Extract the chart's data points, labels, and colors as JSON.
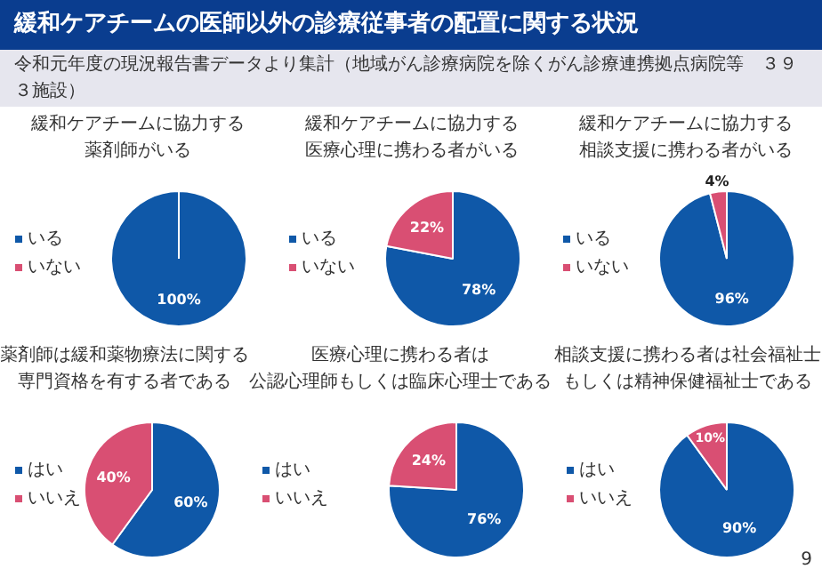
{
  "chart_data": [
    {
      "type": "other",
      "title": "緩和ケアチームの医師以外の診療従事者の配置に関する状況",
      "subtitle": "令和元年度の現況報告書データより集計（地域がん診療病院を除くがん診療連携拠点病院等　３９３施設）"
    },
    {
      "type": "pie",
      "title": "緩和ケアチームに協力する",
      "subtitle": "薬剤師がいる",
      "categories": [
        "いる",
        "いない"
      ],
      "values": [
        100,
        0
      ],
      "colors": [
        "#0f58a8",
        "#d94f73"
      ],
      "value_labels": [
        "100%",
        null
      ],
      "legend": "left"
    },
    {
      "type": "pie",
      "title": "緩和ケアチームに協力する",
      "subtitle": "医療心理に携わる者がいる",
      "categories": [
        "いる",
        "いない"
      ],
      "values": [
        78,
        22
      ],
      "colors": [
        "#0f58a8",
        "#d94f73"
      ],
      "value_labels": [
        "78%",
        "22%"
      ],
      "legend": "left"
    },
    {
      "type": "pie",
      "title": "緩和ケアチームに協力する",
      "subtitle": "相談支援に携わる者がいる",
      "categories": [
        "いる",
        "いない"
      ],
      "values": [
        96,
        4
      ],
      "colors": [
        "#0f58a8",
        "#d94f73"
      ],
      "value_labels": [
        "96%",
        "4%"
      ],
      "legend": "left"
    },
    {
      "type": "pie",
      "title": "薬剤師は緩和薬物療法に関する",
      "subtitle": "専門資格を有する者である",
      "categories": [
        "はい",
        "いいえ"
      ],
      "values": [
        60,
        40
      ],
      "colors": [
        "#0f58a8",
        "#d94f73"
      ],
      "value_labels": [
        "60%",
        "40%"
      ],
      "legend": "left"
    },
    {
      "type": "pie",
      "title": "医療心理に携わる者は",
      "subtitle": "公認心理師もしくは臨床心理士である",
      "categories": [
        "はい",
        "いいえ"
      ],
      "values": [
        76,
        24
      ],
      "colors": [
        "#0f58a8",
        "#d94f73"
      ],
      "value_labels": [
        "76%",
        "24%"
      ],
      "legend": "left"
    },
    {
      "type": "pie",
      "title": "相談支援に携わる者は社会福祉士",
      "subtitle": "もしくは精神保健福祉士である",
      "categories": [
        "はい",
        "いいえ"
      ],
      "values": [
        90,
        10
      ],
      "colors": [
        "#0f58a8",
        "#d94f73"
      ],
      "value_labels": [
        "90%",
        "10%"
      ],
      "legend": "left",
      "annotations": [
        "9"
      ]
    }
  ]
}
